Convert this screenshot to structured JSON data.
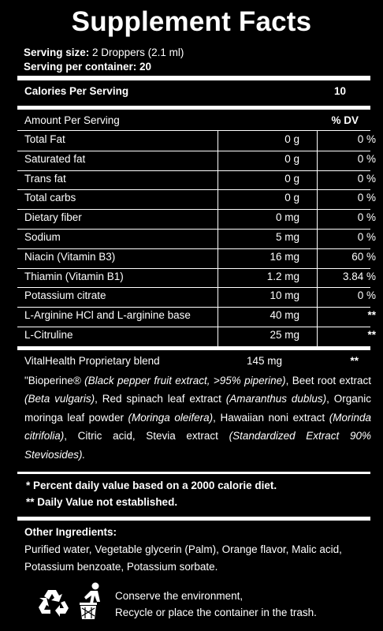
{
  "title": "Supplement Facts",
  "serving": {
    "size_label": "Serving size:",
    "size_value": "2 Droppers (2.1 ml)",
    "per_container": "Serving per container: 20"
  },
  "calories": {
    "label": "Calories Per Serving",
    "value": "10"
  },
  "table_header": {
    "amount_label": "Amount Per Serving",
    "dv_label": "% DV"
  },
  "nutrients": [
    {
      "name": "Total Fat",
      "amount": "0 g",
      "dv": "0 %"
    },
    {
      "name": "Saturated fat",
      "amount": "0 g",
      "dv": "0 %"
    },
    {
      "name": "Trans fat",
      "amount": "0 g",
      "dv": "0 %"
    },
    {
      "name": "Total carbs",
      "amount": "0 g",
      "dv": "0 %"
    },
    {
      "name": "Dietary fiber",
      "amount": "0 mg",
      "dv": "0 %"
    },
    {
      "name": "Sodium",
      "amount": "5 mg",
      "dv": "0 %"
    },
    {
      "name": "Niacin (Vitamin B3)",
      "amount": "16 mg",
      "dv": "60 %"
    },
    {
      "name": "Thiamin (Vitamin B1)",
      "amount": "1.2 mg",
      "dv": "3.84 %"
    },
    {
      "name": "Potassium citrate",
      "amount": "10 mg",
      "dv": "0 %"
    },
    {
      "name": "L-Arginine HCl and L-arginine base",
      "amount": "40 mg",
      "dv": "**"
    },
    {
      "name": "L-Citruline",
      "amount": "25 mg",
      "dv": "**"
    }
  ],
  "blend": {
    "name": "VitalHealth Proprietary blend",
    "amount": "145 mg",
    "dv": "**",
    "description_parts": [
      {
        "text": "\"Bioperine® ",
        "italic": false
      },
      {
        "text": "(Black pepper fruit extract, >95% piperine)",
        "italic": true
      },
      {
        "text": ", Beet root extract ",
        "italic": false
      },
      {
        "text": "(Beta vulgaris)",
        "italic": true
      },
      {
        "text": ", Red spinach leaf extract ",
        "italic": false
      },
      {
        "text": "(Amaranthus dublus)",
        "italic": true
      },
      {
        "text": ", Organic moringa leaf powder ",
        "italic": false
      },
      {
        "text": "(Moringa oleifera)",
        "italic": true
      },
      {
        "text": ", Hawaiian noni extract ",
        "italic": false
      },
      {
        "text": "(Morinda citrifolia)",
        "italic": true
      },
      {
        "text": ", Citric acid, Stevia extract ",
        "italic": false
      },
      {
        "text": "(Standardized Extract 90% Steviosides).",
        "italic": true
      }
    ]
  },
  "footnotes": {
    "percent_note": "* Percent daily value based on a 2000 calorie diet.",
    "dv_note": "** Daily Value not established."
  },
  "other_ingredients": {
    "title": "Other Ingredients:",
    "text": "Purified water, Vegetable glycerin (Palm), Orange flavor, Malic acid, Potassium benzoate, Potassium sorbate."
  },
  "conserve": {
    "line1": "Conserve the environment,",
    "line2": "Recycle or place the container in the trash."
  }
}
